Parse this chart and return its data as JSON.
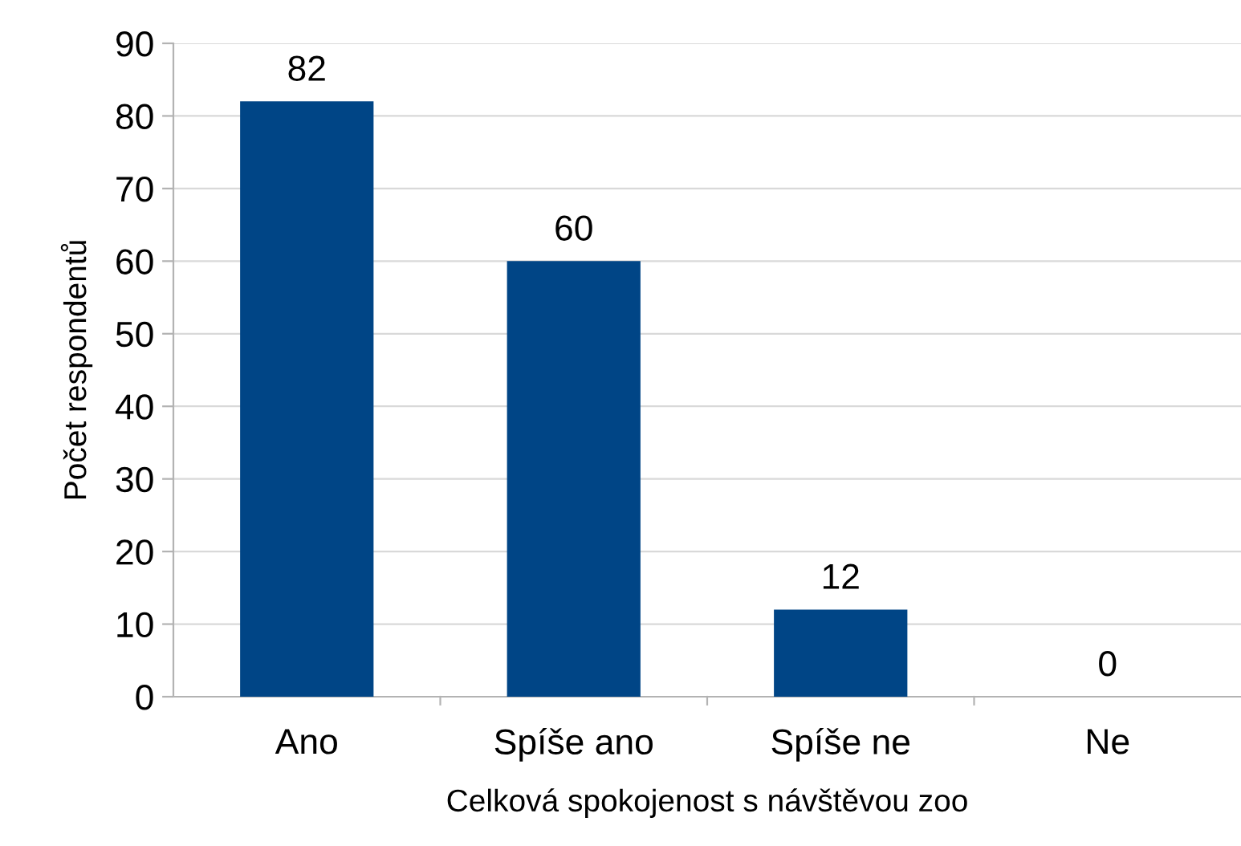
{
  "chart_data": {
    "type": "bar",
    "xlabel": "Celková spokojenost s návštěvou zoo",
    "ylabel": "Počet respondentů",
    "categories": [
      "Ano",
      "Spíše ano",
      "Spíše ne",
      "Ne"
    ],
    "values": [
      82,
      60,
      12,
      0
    ],
    "color": "#004586",
    "ylim": [
      0,
      90
    ],
    "yticks": [
      0,
      10,
      20,
      30,
      40,
      50,
      60,
      70,
      80,
      90
    ],
    "grid": "y",
    "data_labels": true
  }
}
